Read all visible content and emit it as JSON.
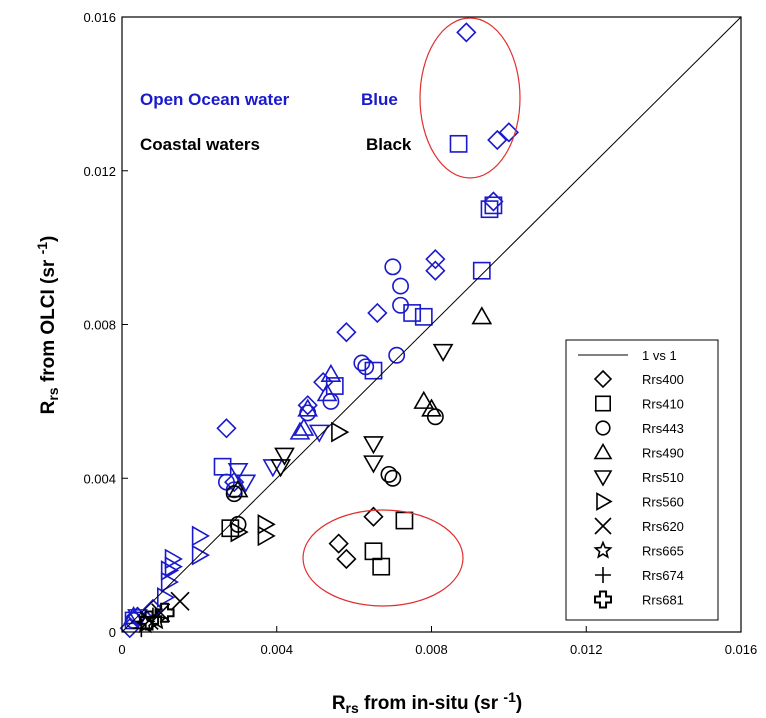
{
  "chart_data": {
    "type": "scatter",
    "xlabel": {
      "main": "R",
      "sub": "rs",
      "rest": " from in-situ (sr ",
      "sup": "-1",
      "close": ")"
    },
    "ylabel": {
      "main": "R",
      "sub": "rs",
      "rest": " from OLCI (sr ",
      "sup": "-1",
      "close": ")"
    },
    "xlim": [
      0,
      0.016
    ],
    "ylim": [
      0,
      0.016
    ],
    "xticks": [
      "0",
      "0.004",
      "0.008",
      "0.012",
      "0.016"
    ],
    "yticks": [
      "0",
      "0.004",
      "0.008",
      "0.012",
      "0.016"
    ],
    "one_to_one_label": "1 vs 1",
    "annotations": {
      "open_ocean": "Open Ocean water",
      "blue": "Blue",
      "coastal": "Coastal waters",
      "black": "Black"
    },
    "colors": {
      "blue": "#1a1acc",
      "black": "#000000",
      "ellipse": "#e03030"
    },
    "series": [
      {
        "name": "Rrs400",
        "marker": "diamond",
        "blue": [
          [
            0.0089,
            0.0156
          ],
          [
            0.0097,
            0.0128
          ],
          [
            0.01,
            0.013
          ],
          [
            0.0096,
            0.0112
          ],
          [
            0.0081,
            0.0097
          ],
          [
            0.0081,
            0.0094
          ],
          [
            0.0066,
            0.0083
          ],
          [
            0.0058,
            0.0078
          ],
          [
            0.0052,
            0.0065
          ],
          [
            0.0048,
            0.0059
          ],
          [
            0.0027,
            0.0053
          ],
          [
            0.0029,
            0.0039
          ],
          [
            0.0008,
            0.0006
          ],
          [
            0.0004,
            0.0004
          ],
          [
            0.0002,
            0.0001
          ]
        ],
        "black": [
          [
            0.0065,
            0.003
          ],
          [
            0.0056,
            0.0023
          ],
          [
            0.0058,
            0.0019
          ]
        ]
      },
      {
        "name": "Rrs410",
        "marker": "square",
        "blue": [
          [
            0.0087,
            0.0127
          ],
          [
            0.0096,
            0.0111
          ],
          [
            0.0095,
            0.011
          ],
          [
            0.0093,
            0.0094
          ],
          [
            0.0078,
            0.0082
          ],
          [
            0.0075,
            0.0083
          ],
          [
            0.0065,
            0.0068
          ],
          [
            0.0055,
            0.0064
          ],
          [
            0.0026,
            0.0043
          ],
          [
            0.0003,
            0.0003
          ]
        ],
        "black": [
          [
            0.0073,
            0.0029
          ],
          [
            0.0065,
            0.0021
          ],
          [
            0.0067,
            0.0017
          ],
          [
            0.0028,
            0.0027
          ]
        ]
      },
      {
        "name": "Rrs443",
        "marker": "circle",
        "blue": [
          [
            0.007,
            0.0095
          ],
          [
            0.0072,
            0.009
          ],
          [
            0.0072,
            0.0085
          ],
          [
            0.0071,
            0.0072
          ],
          [
            0.0062,
            0.007
          ],
          [
            0.0063,
            0.0069
          ],
          [
            0.0054,
            0.006
          ],
          [
            0.0048,
            0.0057
          ],
          [
            0.0027,
            0.0039
          ],
          [
            0.0029,
            0.0037
          ],
          [
            0.0003,
            0.0003
          ]
        ],
        "black": [
          [
            0.0081,
            0.0056
          ],
          [
            0.0069,
            0.0041
          ],
          [
            0.007,
            0.004
          ],
          [
            0.003,
            0.0028
          ],
          [
            0.0029,
            0.0036
          ]
        ]
      },
      {
        "name": "Rrs490",
        "marker": "triangle-up",
        "blue": [
          [
            0.0054,
            0.0067
          ],
          [
            0.0048,
            0.0058
          ],
          [
            0.0047,
            0.0053
          ],
          [
            0.0046,
            0.0052
          ],
          [
            0.0053,
            0.0062
          ],
          [
            0.0003,
            0.0004
          ]
        ],
        "black": [
          [
            0.0093,
            0.0082
          ],
          [
            0.0078,
            0.006
          ],
          [
            0.008,
            0.0058
          ],
          [
            0.003,
            0.0037
          ]
        ]
      },
      {
        "name": "Rrs510",
        "marker": "triangle-down",
        "blue": [
          [
            0.003,
            0.0042
          ],
          [
            0.0032,
            0.0039
          ],
          [
            0.0039,
            0.0043
          ],
          [
            0.0051,
            0.0052
          ],
          [
            0.0004,
            0.0004
          ]
        ],
        "black": [
          [
            0.0083,
            0.0073
          ],
          [
            0.0065,
            0.0049
          ],
          [
            0.0065,
            0.0044
          ],
          [
            0.0042,
            0.0046
          ],
          [
            0.0041,
            0.0043
          ]
        ]
      },
      {
        "name": "Rrs560",
        "marker": "triangle-right",
        "blue": [
          [
            0.002,
            0.0025
          ],
          [
            0.002,
            0.002
          ],
          [
            0.0013,
            0.0019
          ],
          [
            0.0013,
            0.0017
          ],
          [
            0.0012,
            0.0016
          ],
          [
            0.0012,
            0.0013
          ],
          [
            0.0011,
            0.0009
          ]
        ],
        "black": [
          [
            0.0056,
            0.0052
          ],
          [
            0.0037,
            0.0028
          ],
          [
            0.0037,
            0.0025
          ],
          [
            0.003,
            0.0026
          ]
        ]
      },
      {
        "name": "Rrs620",
        "marker": "x",
        "blue": [],
        "black": [
          [
            0.0015,
            0.0008
          ],
          [
            0.001,
            0.0005
          ],
          [
            0.0007,
            0.0003
          ]
        ]
      },
      {
        "name": "Rrs665",
        "marker": "star",
        "blue": [],
        "black": [
          [
            0.0009,
            0.0003
          ],
          [
            0.0006,
            0.0002
          ]
        ]
      },
      {
        "name": "Rrs674",
        "marker": "plus",
        "blue": [],
        "black": [
          [
            0.0008,
            0.0004
          ],
          [
            0.0005,
            0.0001
          ]
        ]
      },
      {
        "name": "Rrs681",
        "marker": "cross",
        "blue": [],
        "black": [
          [
            0.0011,
            0.0005
          ],
          [
            0.0007,
            0.0003
          ]
        ]
      }
    ]
  }
}
